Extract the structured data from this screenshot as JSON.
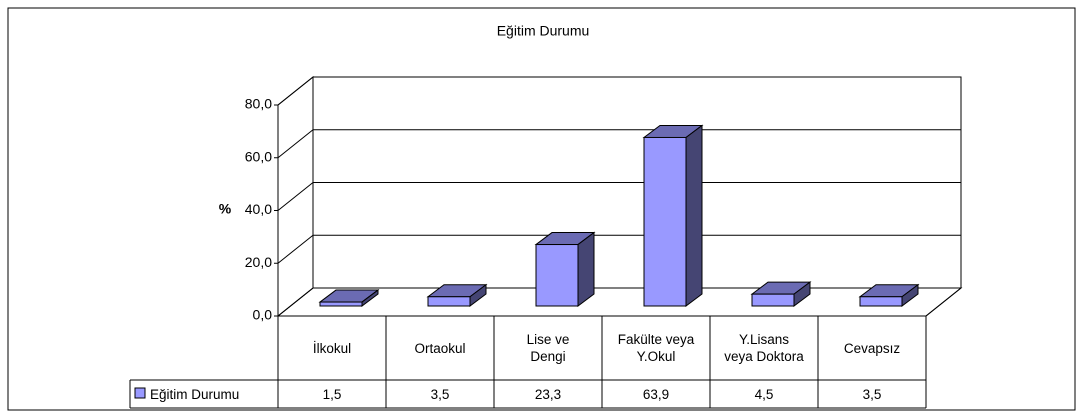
{
  "chart_data": {
    "type": "bar3d",
    "title": "Eğitim Durumu",
    "y_label": "%",
    "categories": [
      "İlkokul",
      "Ortaokul",
      "Lise ve\nDengi",
      "Fakülte veya\nY.Okul",
      "Y.Lisans\nveya Doktora",
      "Cevapsız"
    ],
    "series": [
      {
        "name": "Eğitim Durumu",
        "color": "#9999ff",
        "values": [
          1.5,
          3.5,
          23.3,
          63.9,
          4.5,
          3.5
        ],
        "value_labels": [
          "1,5",
          "3,5",
          "23,3",
          "63,9",
          "4,5",
          "3,5"
        ]
      }
    ],
    "ylim": [
      0,
      80
    ],
    "yticks": [
      {
        "value": 0,
        "label": "0,0"
      },
      {
        "value": 20,
        "label": "20,0"
      },
      {
        "value": 40,
        "label": "40,0"
      },
      {
        "value": 60,
        "label": "60,0"
      },
      {
        "value": 80,
        "label": "80,0"
      }
    ],
    "grid": true,
    "data_table": true
  }
}
